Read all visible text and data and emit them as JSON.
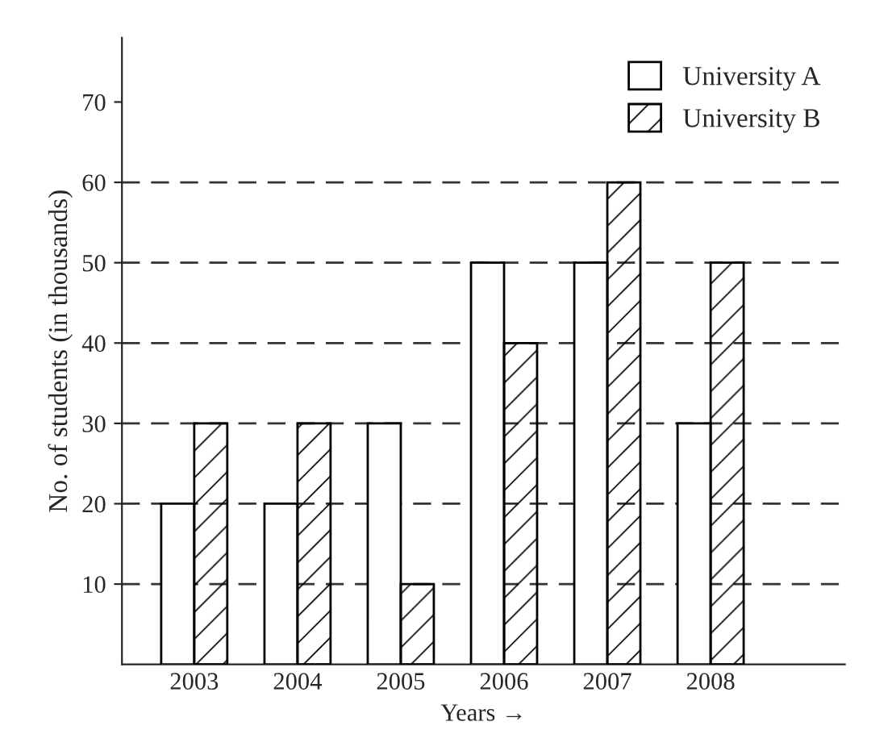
{
  "chart_data": {
    "type": "bar",
    "xlabel": "Years →",
    "ylabel": "No. of students (in thousands)",
    "categories": [
      "2003",
      "2004",
      "2005",
      "2006",
      "2007",
      "2008"
    ],
    "series": [
      {
        "name": "University A",
        "color": "#ffffff",
        "values": [
          20,
          20,
          30,
          50,
          50,
          30
        ]
      },
      {
        "name": "University B",
        "color": "#000000",
        "values": [
          30,
          30,
          10,
          40,
          60,
          50
        ]
      }
    ],
    "ylim": [
      0,
      78
    ],
    "yticks": [
      10,
      20,
      30,
      40,
      50,
      60,
      70
    ],
    "grid": false,
    "legend": "top right",
    "ref_lines": [
      {
        "axis": "y",
        "value": 10,
        "line_style": "dashed"
      },
      {
        "axis": "y",
        "value": 20,
        "line_style": "dashed"
      },
      {
        "axis": "y",
        "value": 30,
        "line_style": "dashed"
      },
      {
        "axis": "y",
        "value": 40,
        "line_style": "dashed"
      },
      {
        "axis": "y",
        "value": 50,
        "line_style": "dashed"
      },
      {
        "axis": "y",
        "value": 60,
        "line_style": "dashed"
      }
    ]
  }
}
